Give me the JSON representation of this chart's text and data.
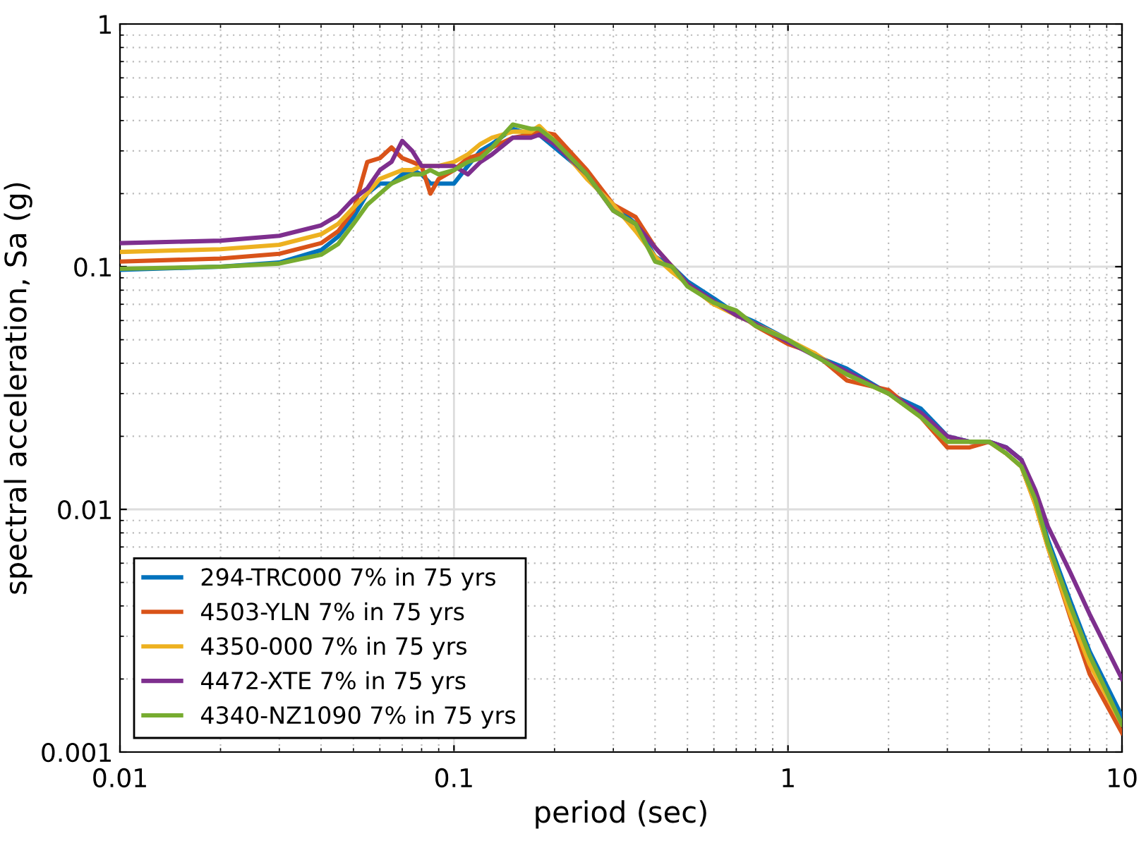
{
  "chart_data": {
    "type": "line",
    "xlabel": "period (sec)",
    "ylabel": "spectral acceleration, Sa (g)",
    "log": "xy",
    "xlim": [
      0.01,
      10
    ],
    "ylim": [
      0.001,
      1
    ],
    "xticks": [
      0.01,
      0.1,
      1,
      10
    ],
    "yticks": [
      0.001,
      0.01,
      0.1,
      1
    ],
    "grid": true,
    "legend": "bottom left",
    "line_style": "solid",
    "marker": "none",
    "x": [
      0.01,
      0.02,
      0.03,
      0.04,
      0.045,
      0.05,
      0.055,
      0.06,
      0.065,
      0.07,
      0.075,
      0.08,
      0.085,
      0.09,
      0.1,
      0.11,
      0.12,
      0.13,
      0.15,
      0.17,
      0.18,
      0.2,
      0.25,
      0.3,
      0.35,
      0.4,
      0.45,
      0.5,
      0.6,
      0.7,
      0.8,
      1,
      1.2,
      1.5,
      2,
      2.5,
      3,
      3.5,
      4,
      4.5,
      5,
      5.5,
      6,
      7,
      8,
      10
    ],
    "series": [
      {
        "name": "294-TRC000 7% in 75 yrs",
        "color": "#0072bd",
        "values": [
          0.097,
          0.1,
          0.104,
          0.117,
          0.133,
          0.16,
          0.2,
          0.22,
          0.22,
          0.24,
          0.25,
          0.24,
          0.22,
          0.22,
          0.22,
          0.26,
          0.3,
          0.32,
          0.37,
          0.35,
          0.35,
          0.31,
          0.24,
          0.18,
          0.15,
          0.11,
          0.1,
          0.087,
          0.074,
          0.064,
          0.059,
          0.05,
          0.043,
          0.038,
          0.03,
          0.026,
          0.02,
          0.019,
          0.019,
          0.018,
          0.016,
          0.011,
          0.0075,
          0.0042,
          0.0026,
          0.0014
        ]
      },
      {
        "name": "4503-YLN 7% in 75 yrs",
        "color": "#d95319",
        "values": [
          0.105,
          0.108,
          0.113,
          0.125,
          0.14,
          0.17,
          0.27,
          0.28,
          0.31,
          0.28,
          0.27,
          0.26,
          0.2,
          0.23,
          0.25,
          0.28,
          0.29,
          0.31,
          0.34,
          0.35,
          0.36,
          0.35,
          0.25,
          0.18,
          0.16,
          0.12,
          0.1,
          0.085,
          0.07,
          0.065,
          0.057,
          0.048,
          0.044,
          0.034,
          0.031,
          0.024,
          0.018,
          0.018,
          0.019,
          0.017,
          0.015,
          0.0105,
          0.007,
          0.0036,
          0.0021,
          0.0012
        ]
      },
      {
        "name": "4350-000 7% in 75 yrs",
        "color": "#edb120",
        "values": [
          0.115,
          0.118,
          0.123,
          0.136,
          0.15,
          0.175,
          0.2,
          0.23,
          0.24,
          0.25,
          0.25,
          0.26,
          0.26,
          0.26,
          0.27,
          0.29,
          0.32,
          0.34,
          0.36,
          0.36,
          0.38,
          0.33,
          0.23,
          0.18,
          0.14,
          0.11,
          0.095,
          0.085,
          0.07,
          0.063,
          0.058,
          0.05,
          0.044,
          0.036,
          0.03,
          0.024,
          0.019,
          0.019,
          0.019,
          0.017,
          0.015,
          0.0105,
          0.007,
          0.0037,
          0.0023,
          0.0013
        ]
      },
      {
        "name": "4472-XTE 7% in 75 yrs",
        "color": "#7e2f8e",
        "values": [
          0.125,
          0.128,
          0.134,
          0.148,
          0.163,
          0.19,
          0.21,
          0.25,
          0.27,
          0.33,
          0.3,
          0.26,
          0.26,
          0.26,
          0.26,
          0.24,
          0.27,
          0.29,
          0.34,
          0.34,
          0.35,
          0.32,
          0.24,
          0.17,
          0.15,
          0.12,
          0.1,
          0.085,
          0.072,
          0.063,
          0.058,
          0.049,
          0.043,
          0.037,
          0.03,
          0.025,
          0.02,
          0.019,
          0.019,
          0.018,
          0.016,
          0.012,
          0.0085,
          0.0055,
          0.0037,
          0.002
        ]
      },
      {
        "name": "4340-NZ1090 7% in 75 yrs",
        "color": "#77ac30",
        "values": [
          0.098,
          0.1,
          0.103,
          0.112,
          0.124,
          0.15,
          0.18,
          0.2,
          0.22,
          0.23,
          0.24,
          0.24,
          0.25,
          0.24,
          0.25,
          0.27,
          0.28,
          0.31,
          0.385,
          0.37,
          0.37,
          0.33,
          0.24,
          0.17,
          0.15,
          0.105,
          0.1,
          0.083,
          0.071,
          0.066,
          0.057,
          0.05,
          0.043,
          0.036,
          0.03,
          0.024,
          0.019,
          0.019,
          0.019,
          0.017,
          0.015,
          0.011,
          0.0072,
          0.004,
          0.0025,
          0.0013
        ]
      }
    ]
  }
}
